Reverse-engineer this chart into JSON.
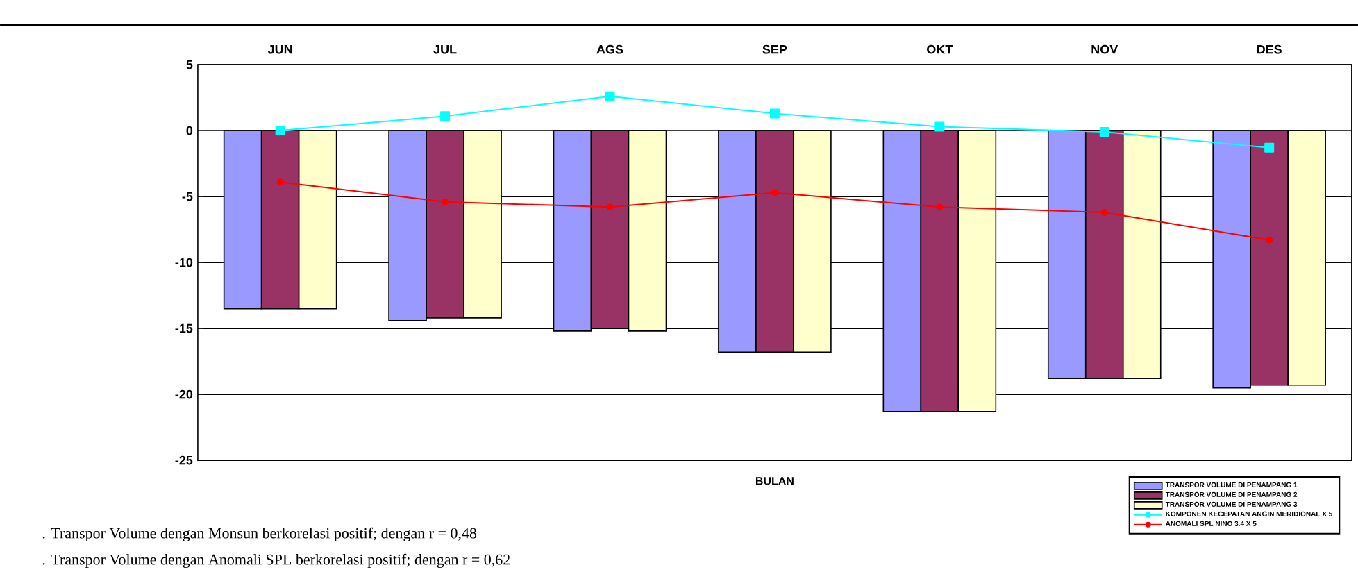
{
  "chart_data": {
    "type": "bar",
    "categories": [
      "JUN",
      "JUL",
      "AGS",
      "SEP",
      "OKT",
      "NOV",
      "DES"
    ],
    "xlabel": "BULAN",
    "series": [
      {
        "name": "TRANSPOR VOLUME DI PENAMPANG 1",
        "color": "#9999ff",
        "values": [
          -13.5,
          -14.4,
          -15.2,
          -16.8,
          -21.3,
          -18.8,
          -19.5
        ]
      },
      {
        "name": "TRANSPOR VOLUME DI PENAMPANG 2",
        "color": "#993366",
        "values": [
          -13.5,
          -14.2,
          -15.0,
          -16.8,
          -21.3,
          -18.8,
          -19.3
        ]
      },
      {
        "name": "TRANSPOR VOLUME DI PENAMPANG 3",
        "color": "#ffffcc",
        "values": [
          -13.5,
          -14.2,
          -15.2,
          -16.8,
          -21.3,
          -18.8,
          -19.3
        ]
      },
      {
        "name": "KOMPONEN KECEPATAN ANGIN MERIDIONAL X 5",
        "type": "line",
        "marker": "square",
        "color": "#00ffff",
        "values": [
          0.0,
          1.1,
          2.6,
          1.3,
          0.3,
          -0.1,
          -1.3
        ]
      },
      {
        "name": "ANOMALI SPL NINO 3.4 X 5",
        "type": "line",
        "marker": "circle",
        "color": "#ff0000",
        "values": [
          -3.9,
          -5.4,
          -5.8,
          -4.7,
          -5.8,
          -6.2,
          -8.3
        ]
      }
    ],
    "ylim": [
      -25,
      5
    ],
    "yticks": [
      -25,
      -20,
      -15,
      -10,
      -5,
      0,
      5
    ],
    "grid": "y",
    "legend": "bottom right",
    "annotations": [
      ". Transpor Volume dengan Monsun  berkorelasi positif; dengan r =  0,48",
      ". Transpor Volume dengan Anomali SPL berkorelasi positif; dengan r =  0,62"
    ]
  }
}
